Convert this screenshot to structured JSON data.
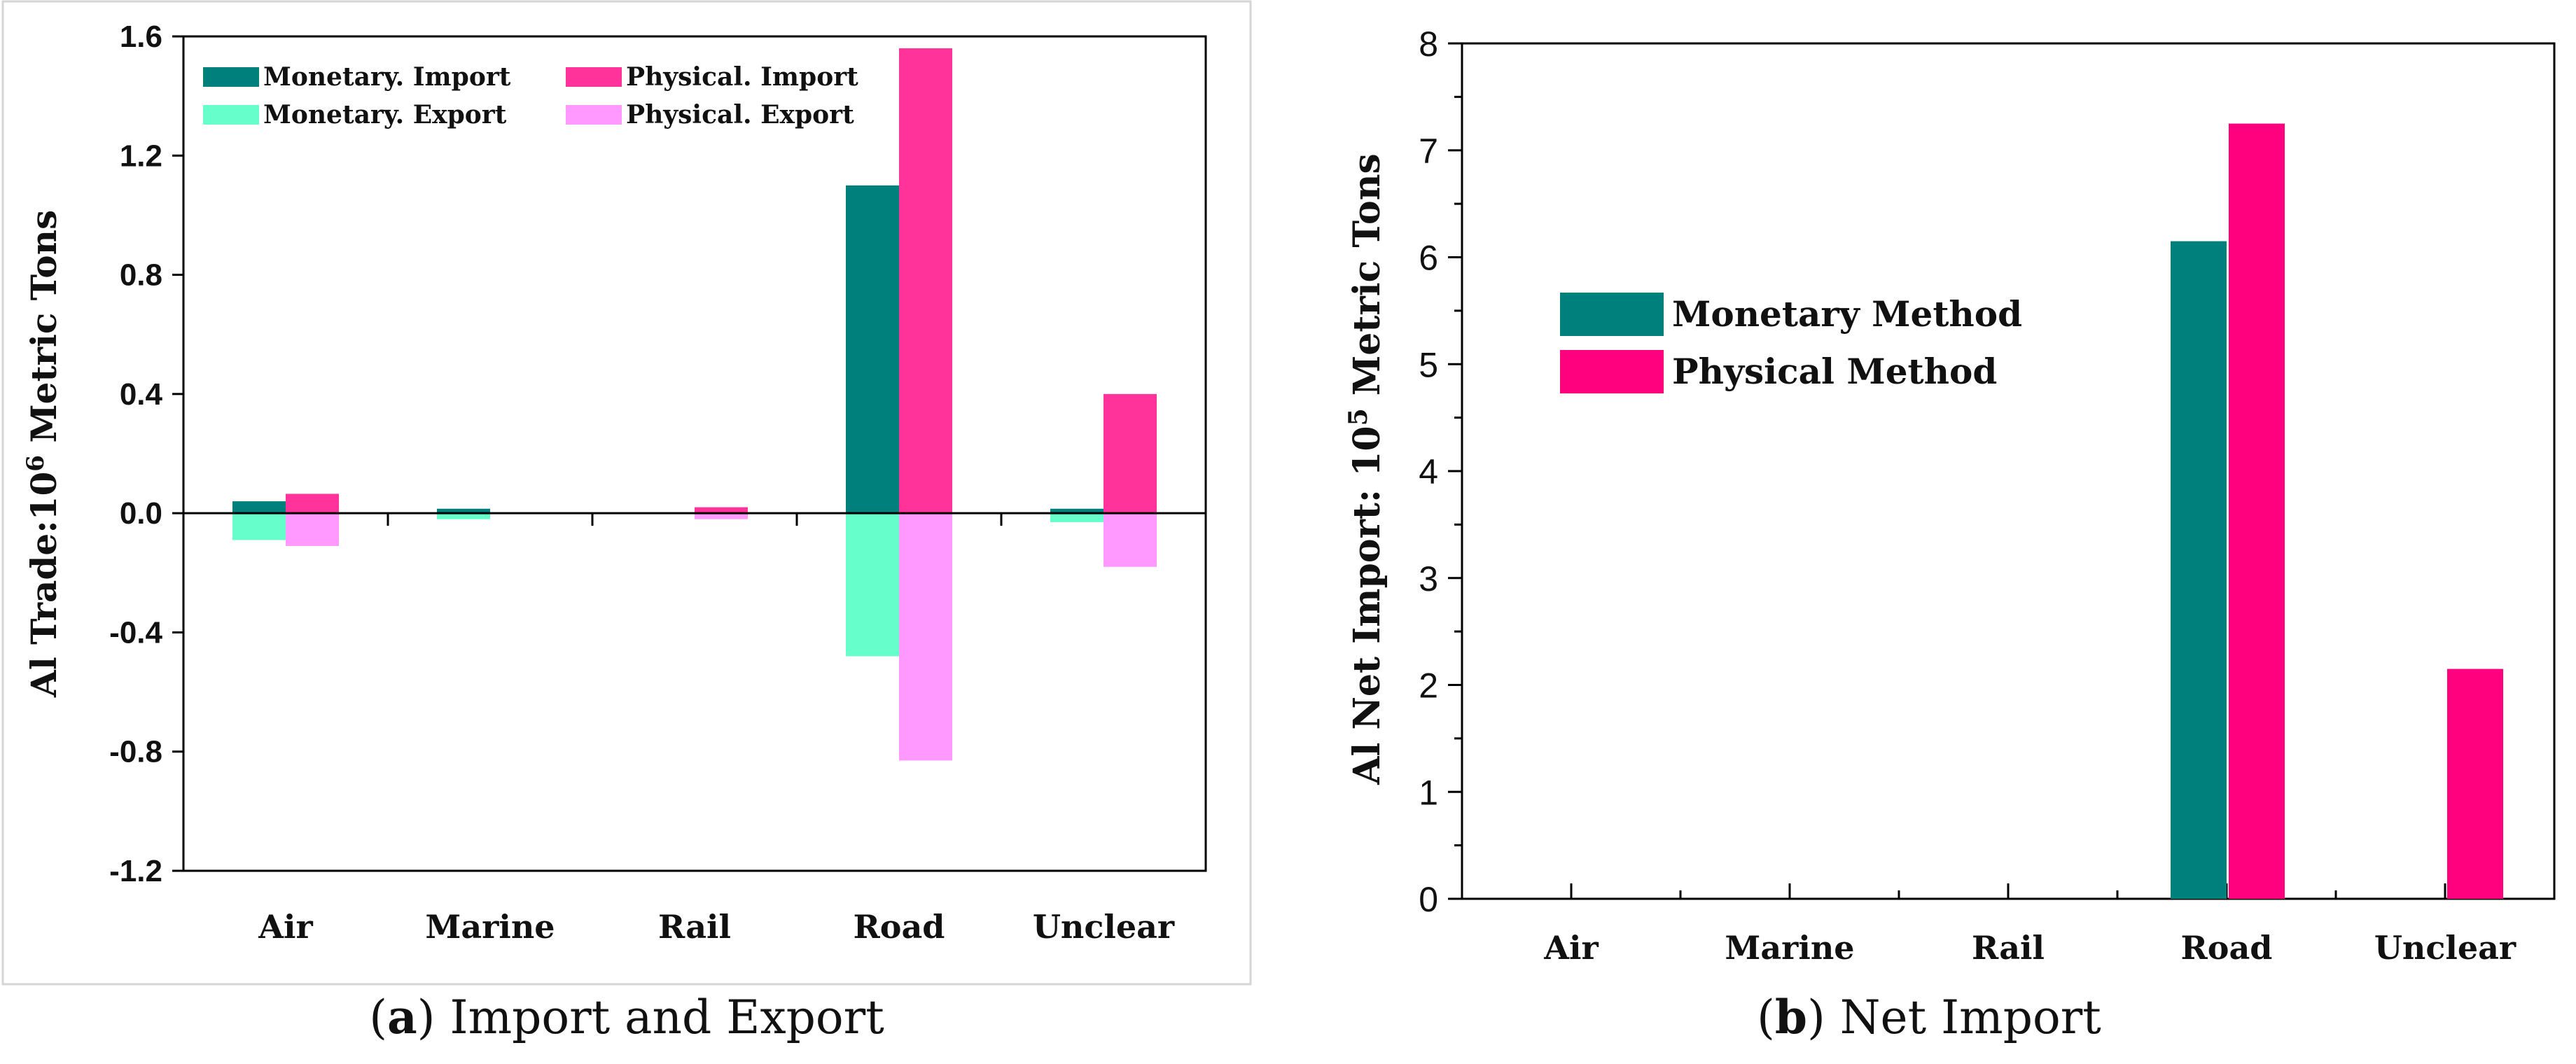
{
  "chart_data": [
    {
      "type": "bar",
      "panel": "a",
      "caption_label": "a",
      "caption_text": " Import and Export",
      "ylabel_main": "Al Trade:10",
      "ylabel_sup": "6",
      "ylabel_tail": " Metric Tons",
      "categories": [
        "Air",
        "Marine",
        "Rail",
        "Road",
        "Unclear"
      ],
      "ylim": [
        -1.2,
        1.6
      ],
      "yticks": [
        -1.2,
        -0.8,
        -0.4,
        0.0,
        0.4,
        0.8,
        1.2,
        1.6
      ],
      "ytick_labels": [
        "-1.2",
        "-0.8",
        "-0.4",
        "0.0",
        "0.4",
        "0.8",
        "1.2",
        "1.6"
      ],
      "series": [
        {
          "name": "Monetary. Import",
          "color": "#00807d",
          "values": [
            0.04,
            0.015,
            0.0,
            1.1,
            0.015
          ]
        },
        {
          "name": "Monetary. Export",
          "color": "#66ffcc",
          "values": [
            -0.09,
            -0.02,
            0.0,
            -0.48,
            -0.03
          ]
        },
        {
          "name": "Physical. Import",
          "color": "#ff3399",
          "values": [
            0.065,
            0.0,
            0.02,
            1.56,
            0.4
          ]
        },
        {
          "name": "Physical. Export",
          "color": "#ff99ff",
          "values": [
            -0.11,
            0.0,
            -0.02,
            -0.83,
            -0.18
          ]
        }
      ]
    },
    {
      "type": "bar",
      "panel": "b",
      "caption_label": "b",
      "caption_text": " Net Import",
      "ylabel_main": "Al Net Import: 10",
      "ylabel_sup": "5",
      "ylabel_tail": " Metric Tons",
      "categories": [
        "Air",
        "Marine",
        "Rail",
        "Road",
        "Unclear"
      ],
      "ylim": [
        0,
        8
      ],
      "yticks": [
        0,
        1,
        2,
        3,
        4,
        5,
        6,
        7,
        8
      ],
      "ytick_labels": [
        "0",
        "1",
        "2",
        "3",
        "4",
        "5",
        "6",
        "7",
        "8"
      ],
      "series": [
        {
          "name": "Monetary Method",
          "color": "#00807d",
          "values": [
            0,
            0,
            0,
            6.15,
            0
          ]
        },
        {
          "name": "Physical Method",
          "color": "#ff007f",
          "values": [
            0,
            0,
            0,
            7.25,
            2.15
          ]
        }
      ]
    }
  ]
}
